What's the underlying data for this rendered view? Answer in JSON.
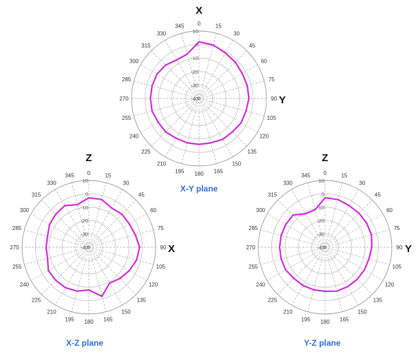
{
  "colors": {
    "trace": "#d22ad6",
    "title": "#2e6fd1",
    "grid": "#bdbdbd"
  },
  "chart_data": [
    {
      "type": "polar",
      "title": "X-Y plane",
      "top_axis": "X",
      "right_axis": "Y",
      "angles": [
        0,
        15,
        30,
        45,
        60,
        75,
        90,
        105,
        120,
        135,
        150,
        165,
        180,
        195,
        210,
        225,
        240,
        255,
        270,
        285,
        300,
        315,
        330,
        345
      ],
      "radial_ticks": [
        "10",
        "0",
        "-10",
        "-20",
        "-30",
        "-40"
      ],
      "rlim": [
        -40,
        10
      ],
      "values": [
        2,
        1,
        -1,
        -2,
        -3,
        -3,
        -3,
        -4,
        -4,
        -5,
        -5,
        -6,
        -6,
        -6,
        -6,
        -5,
        -5,
        -4,
        -4,
        -4,
        -4,
        -5,
        -7,
        -6
      ]
    },
    {
      "type": "polar",
      "title": "X-Z plane",
      "top_axis": "Z",
      "right_axis": "X",
      "angles": [
        0,
        15,
        30,
        45,
        60,
        75,
        90,
        105,
        120,
        135,
        150,
        165,
        180,
        195,
        210,
        225,
        240,
        255,
        270,
        285,
        300,
        315,
        330,
        345
      ],
      "radial_ticks": [
        "10",
        "0",
        "-10",
        "-20",
        "-30",
        "-40"
      ],
      "rlim": [
        -40,
        10
      ],
      "values": [
        -3,
        -3,
        -6,
        -5,
        -5,
        -4,
        -2,
        -3,
        -5,
        -7,
        -9,
        -2,
        -8,
        -6,
        -5,
        -5,
        -5,
        -8,
        -8,
        -8,
        -6,
        -5,
        -4,
        -7
      ]
    },
    {
      "type": "polar",
      "title": "Y-Z plane",
      "top_axis": "Z",
      "right_axis": "Y",
      "angles": [
        0,
        15,
        30,
        45,
        60,
        75,
        90,
        105,
        120,
        135,
        150,
        165,
        180,
        195,
        210,
        225,
        240,
        255,
        270,
        285,
        300,
        315,
        330,
        345
      ],
      "radial_ticks": [
        "10",
        "0",
        "-10",
        "-20",
        "-30",
        "-40"
      ],
      "rlim": [
        -40,
        10
      ],
      "values": [
        -3,
        -3,
        -4,
        -4,
        -4,
        -4,
        -5,
        -6,
        -6,
        -6,
        -6,
        -6,
        -7,
        -7,
        -7,
        -7,
        -6,
        -6,
        -6,
        -6,
        -6,
        -6,
        -11,
        -11
      ]
    }
  ]
}
